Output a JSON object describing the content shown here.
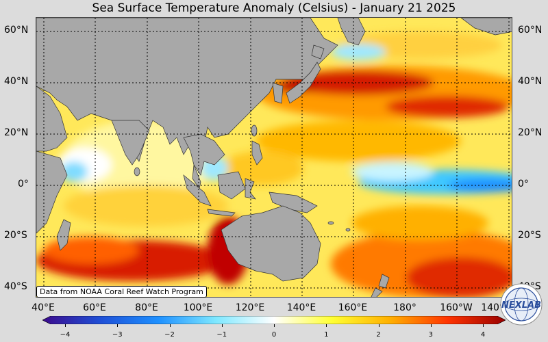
{
  "title": "Sea Surface Temperature Anomaly (Celsius) - January 21 2025",
  "latitude_labels": [
    "60°N",
    "40°N",
    "20°N",
    "0°",
    "20°S",
    "40°S"
  ],
  "longitude_labels": [
    "40°E",
    "60°E",
    "80°E",
    "100°E",
    "120°E",
    "140°E",
    "160°E",
    "180°",
    "160°W",
    "140°W"
  ],
  "credit": "Data from NOAA Coral Reef Watch Program",
  "colorbar": {
    "ticks": [
      "−4",
      "−3",
      "−2",
      "−1",
      "0",
      "1",
      "2",
      "3",
      "4"
    ],
    "colors": [
      "#3b0a8c",
      "#1f4fd6",
      "#1e90ff",
      "#7fe8ff",
      "#ffffff",
      "#ffff33",
      "#ffb000",
      "#ff3300",
      "#990000"
    ]
  },
  "logo": {
    "text": "NEXLAB",
    "icon": "nexlab-globe-logo"
  },
  "colors": {
    "land": "#a8a8a8",
    "warm": "#ff9a00",
    "hot": "#d41a00",
    "neutral": "#ffffff",
    "cool": "#40c8ff"
  }
}
